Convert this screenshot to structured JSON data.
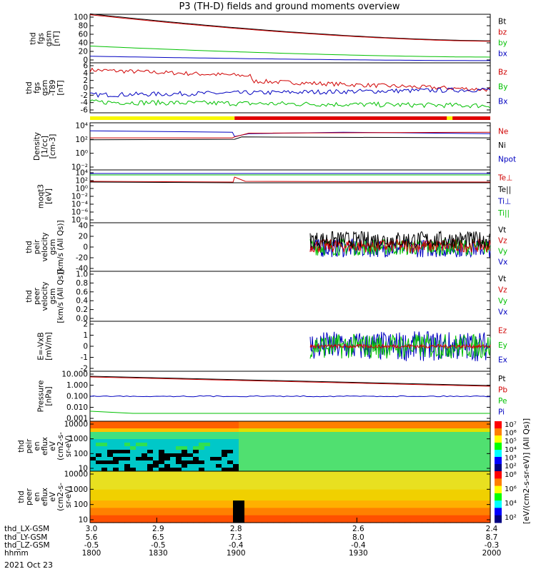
{
  "title": "P3 (TH-D) fields and ground moments overview",
  "date_label": "2021 Oct 23",
  "chart_data": {
    "type": "line",
    "x_axis": {
      "rows": [
        {
          "name": "thd_LX-GSM",
          "values": [
            "3.0",
            "2.9",
            "2.8",
            "2.6",
            "2.4"
          ]
        },
        {
          "name": "thd_LY-GSM",
          "values": [
            "5.6",
            "6.5",
            "7.3",
            "8.0",
            "8.7"
          ]
        },
        {
          "name": "thd_LZ-GSM",
          "values": [
            "-0.5",
            "-0.5",
            "-0.4",
            "-0.4",
            "-0.3"
          ]
        },
        {
          "name": "hhmm",
          "values": [
            "1800",
            "1830",
            "1900",
            "1930",
            "2000"
          ]
        }
      ]
    },
    "panels": [
      {
        "id": "fgs-mag",
        "ylabel": [
          "thd",
          "fgs",
          "gsm",
          "[nT]"
        ],
        "yticks": [
          "100",
          "80",
          "60",
          "40",
          "20",
          "0"
        ],
        "ylim": [
          -5,
          105
        ],
        "series": [
          {
            "name": "Bt",
            "color": "#000000"
          },
          {
            "name": "bz",
            "color": "#d00000"
          },
          {
            "name": "by",
            "color": "#00c000"
          },
          {
            "name": "bx",
            "color": "#0000c0"
          }
        ]
      },
      {
        "id": "fgs-dtrend",
        "ylabel": [
          "thd",
          "fgs",
          "gsm",
          "-T89",
          "[nT]"
        ],
        "yticks": [
          "6",
          "4",
          "2",
          "0",
          "-2",
          "-4",
          "-6"
        ],
        "ylim": [
          -7,
          7
        ],
        "series": [
          {
            "name": "Bz",
            "color": "#d00000"
          },
          {
            "name": "By",
            "color": "#00c000"
          },
          {
            "name": "Bx",
            "color": "#0000c0"
          }
        ]
      },
      {
        "id": "density",
        "ylabel": [
          "Density",
          "[1/cc]",
          "[cm-3]"
        ],
        "yticks": [
          "10⁴",
          "10²",
          "10⁰",
          "10⁻²"
        ],
        "log": true,
        "series": [
          {
            "name": "Ne",
            "color": "#d00000"
          },
          {
            "name": "Ni",
            "color": "#000000"
          },
          {
            "name": "Npot",
            "color": "#0000c0"
          }
        ]
      },
      {
        "id": "temp",
        "ylabel": [
          "moqt3",
          "[eV]"
        ],
        "yticks": [
          "10⁴",
          "10²",
          "10⁰",
          "10⁻²",
          "10⁻⁴",
          "10⁻⁶",
          "10⁻⁸"
        ],
        "log": true,
        "series": [
          {
            "name": "Te⊥",
            "color": "#d00000"
          },
          {
            "name": "Te||",
            "color": "#000000"
          },
          {
            "name": "Ti⊥",
            "color": "#0000c0"
          },
          {
            "name": "Ti||",
            "color": "#00c000"
          }
        ]
      },
      {
        "id": "peir-vel",
        "ylabel": [
          "thd",
          "peir",
          "velocity",
          "gsm",
          "[km/s (All Qs)]"
        ],
        "yticks": [
          "40",
          "20",
          "0",
          "-20",
          "-40"
        ],
        "ylim": [
          -40,
          40
        ],
        "series": [
          {
            "name": "Vt",
            "color": "#000000"
          },
          {
            "name": "Vz",
            "color": "#d00000"
          },
          {
            "name": "Vy",
            "color": "#00c000"
          },
          {
            "name": "Vx",
            "color": "#0000c0"
          }
        ]
      },
      {
        "id": "peer-vel",
        "ylabel": [
          "thd",
          "peer",
          "velocity",
          "gsm",
          "[km/s (All Qs)]"
        ],
        "yticks": [
          "1.0",
          "0.8",
          "0.6",
          "0.4",
          "0.2",
          "0.0"
        ],
        "ylim": [
          0,
          1
        ],
        "series": [
          {
            "name": "Vt",
            "color": "#000000"
          },
          {
            "name": "Vz",
            "color": "#d00000"
          },
          {
            "name": "Vy",
            "color": "#00c000"
          },
          {
            "name": "Vx",
            "color": "#0000c0"
          }
        ]
      },
      {
        "id": "efield",
        "ylabel": [
          "E=-VxB",
          "[mV/m]"
        ],
        "yticks": [
          "2",
          "1",
          "0",
          "-1",
          "-2"
        ],
        "ylim": [
          -2,
          2
        ],
        "series": [
          {
            "name": "Ez",
            "color": "#d00000"
          },
          {
            "name": "Ey",
            "color": "#00c000"
          },
          {
            "name": "Ex",
            "color": "#0000c0"
          }
        ]
      },
      {
        "id": "pressure",
        "ylabel": [
          "Pressure",
          "[nPa]"
        ],
        "yticks": [
          "10.000",
          "1.000",
          "0.100",
          "0.010",
          "0.001"
        ],
        "log": true,
        "series": [
          {
            "name": "Pt",
            "color": "#000000"
          },
          {
            "name": "Pb",
            "color": "#d00000"
          },
          {
            "name": "Pe",
            "color": "#00c000"
          },
          {
            "name": "Pi",
            "color": "#0000c0"
          }
        ]
      },
      {
        "id": "peir-spec",
        "ylabel": [
          "thd",
          "peir",
          "en",
          "eflux",
          "eV",
          "(cm2-s-",
          "sr-eV)"
        ],
        "yticks": [
          "10000",
          "1000",
          "100",
          "10"
        ],
        "log": true,
        "spectrogram": true,
        "colorbar": {
          "ticks": [
            "10⁷",
            "10⁶",
            "10⁵",
            "10⁴",
            "10³",
            "10²"
          ]
        }
      },
      {
        "id": "peer-spec",
        "ylabel": [
          "thd",
          "peer",
          "en",
          "eflux",
          "eV",
          "(cm2-s-",
          "sr-eV)"
        ],
        "yticks": [
          "10000",
          "1000",
          "100",
          "10"
        ],
        "log": true,
        "spectrogram": true,
        "colorbar": {
          "ticks": [
            "10⁸",
            "10⁶",
            "10⁴",
            "10²"
          ]
        }
      }
    ],
    "colorbar_label": "[eV/(cm2-s-sr-eV)] (All Qs)]",
    "flag_bar": {
      "colors": [
        "#f8f800",
        "#e00000"
      ],
      "changes_at": "1900"
    }
  }
}
